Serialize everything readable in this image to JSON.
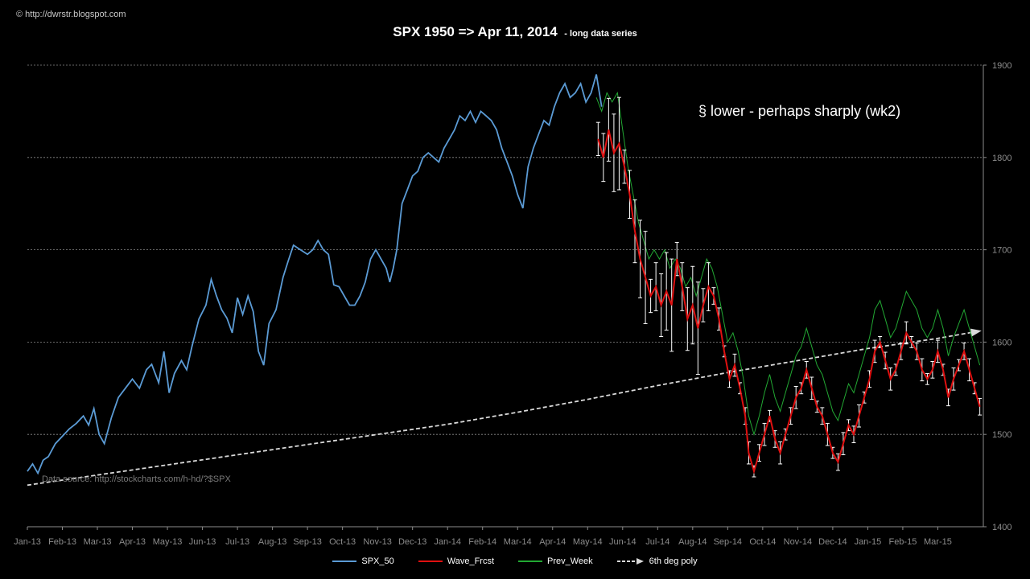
{
  "watermark": "© http://dwrstr.blogspot.com",
  "title_main": "SPX 1950 => Apr 11, 2014",
  "title_sub": "- long data series",
  "annotation": "§ lower - perhaps sharply (wk2)",
  "data_source": "Data source: http://stockcharts.com/h-hd/?$SPX",
  "colors": {
    "spx": "#5b9bd5",
    "wave": "#e01010",
    "prev": "#22a833",
    "poly": "#d9d9d9",
    "grid": "#8c8c8c",
    "axis_text": "#8c8c8c",
    "errbar": "#ffffff"
  },
  "chart_data": {
    "type": "line",
    "title": "SPX 1950 => Apr 11, 2014",
    "x_ticks": [
      "Jan-13",
      "Feb-13",
      "Mar-13",
      "Apr-13",
      "May-13",
      "Jun-13",
      "Jul-13",
      "Aug-13",
      "Sep-13",
      "Oct-13",
      "Nov-13",
      "Dec-13",
      "Jan-14",
      "Feb-14",
      "Mar-14",
      "Apr-14",
      "May-14",
      "Jun-14",
      "Jul-14",
      "Aug-14",
      "Sep-14",
      "Oct-14",
      "Nov-14",
      "Dec-14",
      "Jan-15",
      "Feb-15",
      "Mar-15"
    ],
    "xlim": [
      0,
      27.3
    ],
    "ylim": [
      1400,
      1900
    ],
    "y_ticks": [
      1400,
      1500,
      1600,
      1700,
      1800,
      1900
    ],
    "y_axis_side": "right",
    "grid": "horizontal dotted",
    "legend_position": "bottom",
    "series": [
      {
        "name": "SPX_50",
        "points": [
          [
            0.0,
            1460
          ],
          [
            0.15,
            1468
          ],
          [
            0.3,
            1458
          ],
          [
            0.45,
            1472
          ],
          [
            0.6,
            1476
          ],
          [
            0.8,
            1490
          ],
          [
            1.0,
            1498
          ],
          [
            1.2,
            1506
          ],
          [
            1.4,
            1512
          ],
          [
            1.6,
            1520
          ],
          [
            1.75,
            1510
          ],
          [
            1.9,
            1528
          ],
          [
            2.05,
            1500
          ],
          [
            2.2,
            1490
          ],
          [
            2.4,
            1518
          ],
          [
            2.6,
            1540
          ],
          [
            2.8,
            1550
          ],
          [
            3.0,
            1560
          ],
          [
            3.2,
            1550
          ],
          [
            3.4,
            1570
          ],
          [
            3.55,
            1576
          ],
          [
            3.75,
            1556
          ],
          [
            3.9,
            1590
          ],
          [
            4.05,
            1545
          ],
          [
            4.2,
            1566
          ],
          [
            4.4,
            1580
          ],
          [
            4.55,
            1570
          ],
          [
            4.7,
            1595
          ],
          [
            4.9,
            1625
          ],
          [
            5.1,
            1640
          ],
          [
            5.25,
            1668
          ],
          [
            5.4,
            1650
          ],
          [
            5.55,
            1635
          ],
          [
            5.7,
            1626
          ],
          [
            5.85,
            1610
          ],
          [
            6.0,
            1648
          ],
          [
            6.15,
            1630
          ],
          [
            6.3,
            1650
          ],
          [
            6.45,
            1633
          ],
          [
            6.6,
            1590
          ],
          [
            6.75,
            1575
          ],
          [
            6.9,
            1620
          ],
          [
            7.1,
            1635
          ],
          [
            7.3,
            1670
          ],
          [
            7.45,
            1688
          ],
          [
            7.6,
            1705
          ],
          [
            7.8,
            1700
          ],
          [
            8.0,
            1695
          ],
          [
            8.15,
            1700
          ],
          [
            8.3,
            1710
          ],
          [
            8.45,
            1700
          ],
          [
            8.6,
            1695
          ],
          [
            8.75,
            1662
          ],
          [
            8.9,
            1660
          ],
          [
            9.05,
            1650
          ],
          [
            9.2,
            1640
          ],
          [
            9.35,
            1640
          ],
          [
            9.5,
            1650
          ],
          [
            9.65,
            1665
          ],
          [
            9.8,
            1690
          ],
          [
            9.95,
            1700
          ],
          [
            10.1,
            1690
          ],
          [
            10.25,
            1680
          ],
          [
            10.35,
            1665
          ],
          [
            10.45,
            1680
          ],
          [
            10.55,
            1700
          ],
          [
            10.7,
            1750
          ],
          [
            10.85,
            1765
          ],
          [
            11.0,
            1780
          ],
          [
            11.15,
            1785
          ],
          [
            11.3,
            1800
          ],
          [
            11.45,
            1805
          ],
          [
            11.6,
            1800
          ],
          [
            11.75,
            1795
          ],
          [
            11.9,
            1810
          ],
          [
            12.05,
            1820
          ],
          [
            12.2,
            1830
          ],
          [
            12.35,
            1845
          ],
          [
            12.5,
            1840
          ],
          [
            12.65,
            1850
          ],
          [
            12.8,
            1838
          ],
          [
            12.95,
            1850
          ],
          [
            13.1,
            1845
          ],
          [
            13.25,
            1840
          ],
          [
            13.4,
            1830
          ],
          [
            13.55,
            1810
          ],
          [
            13.7,
            1795
          ],
          [
            13.85,
            1780
          ],
          [
            14.0,
            1760
          ],
          [
            14.15,
            1745
          ],
          [
            14.3,
            1790
          ],
          [
            14.45,
            1810
          ],
          [
            14.6,
            1825
          ],
          [
            14.75,
            1840
          ],
          [
            14.9,
            1835
          ],
          [
            15.05,
            1855
          ],
          [
            15.2,
            1870
          ],
          [
            15.35,
            1880
          ],
          [
            15.5,
            1865
          ],
          [
            15.65,
            1870
          ],
          [
            15.8,
            1880
          ],
          [
            15.95,
            1860
          ],
          [
            16.1,
            1870
          ],
          [
            16.25,
            1890
          ],
          [
            16.4,
            1855
          ]
        ]
      },
      {
        "name": "Wave_Frcst",
        "points": [
          [
            16.3,
            1820
          ],
          [
            16.45,
            1800
          ],
          [
            16.6,
            1830
          ],
          [
            16.75,
            1805
          ],
          [
            16.9,
            1815
          ],
          [
            17.05,
            1790
          ],
          [
            17.2,
            1760
          ],
          [
            17.35,
            1720
          ],
          [
            17.5,
            1690
          ],
          [
            17.65,
            1670
          ],
          [
            17.8,
            1650
          ],
          [
            17.95,
            1660
          ],
          [
            18.1,
            1640
          ],
          [
            18.25,
            1655
          ],
          [
            18.4,
            1640
          ],
          [
            18.55,
            1690
          ],
          [
            18.7,
            1660
          ],
          [
            18.85,
            1625
          ],
          [
            19.0,
            1640
          ],
          [
            19.15,
            1615
          ],
          [
            19.3,
            1640
          ],
          [
            19.45,
            1660
          ],
          [
            19.6,
            1650
          ],
          [
            19.75,
            1625
          ],
          [
            19.9,
            1590
          ],
          [
            20.05,
            1560
          ],
          [
            20.2,
            1575
          ],
          [
            20.35,
            1550
          ],
          [
            20.5,
            1520
          ],
          [
            20.6,
            1480
          ],
          [
            20.75,
            1460
          ],
          [
            20.9,
            1480
          ],
          [
            21.05,
            1500
          ],
          [
            21.2,
            1520
          ],
          [
            21.35,
            1495
          ],
          [
            21.5,
            1480
          ],
          [
            21.65,
            1500
          ],
          [
            21.8,
            1520
          ],
          [
            21.95,
            1540
          ],
          [
            22.1,
            1550
          ],
          [
            22.25,
            1570
          ],
          [
            22.4,
            1550
          ],
          [
            22.55,
            1530
          ],
          [
            22.7,
            1520
          ],
          [
            22.85,
            1500
          ],
          [
            23.0,
            1480
          ],
          [
            23.15,
            1470
          ],
          [
            23.3,
            1490
          ],
          [
            23.45,
            1510
          ],
          [
            23.6,
            1500
          ],
          [
            23.75,
            1520
          ],
          [
            23.9,
            1540
          ],
          [
            24.05,
            1560
          ],
          [
            24.2,
            1590
          ],
          [
            24.35,
            1600
          ],
          [
            24.5,
            1580
          ],
          [
            24.65,
            1560
          ],
          [
            24.8,
            1570
          ],
          [
            24.95,
            1590
          ],
          [
            25.1,
            1610
          ],
          [
            25.25,
            1600
          ],
          [
            25.4,
            1590
          ],
          [
            25.55,
            1570
          ],
          [
            25.7,
            1560
          ],
          [
            25.85,
            1570
          ],
          [
            26.0,
            1590
          ],
          [
            26.15,
            1570
          ],
          [
            26.3,
            1540
          ],
          [
            26.45,
            1560
          ],
          [
            26.6,
            1575
          ],
          [
            26.75,
            1590
          ],
          [
            26.9,
            1570
          ],
          [
            27.05,
            1550
          ],
          [
            27.2,
            1530
          ]
        ]
      },
      {
        "name": "Prev_Week",
        "points": [
          [
            16.25,
            1865
          ],
          [
            16.4,
            1850
          ],
          [
            16.55,
            1870
          ],
          [
            16.7,
            1860
          ],
          [
            16.85,
            1870
          ],
          [
            17.0,
            1830
          ],
          [
            17.15,
            1790
          ],
          [
            17.3,
            1760
          ],
          [
            17.45,
            1730
          ],
          [
            17.6,
            1710
          ],
          [
            17.75,
            1690
          ],
          [
            17.9,
            1700
          ],
          [
            18.05,
            1690
          ],
          [
            18.2,
            1700
          ],
          [
            18.35,
            1680
          ],
          [
            18.5,
            1690
          ],
          [
            18.65,
            1680
          ],
          [
            18.8,
            1660
          ],
          [
            18.95,
            1670
          ],
          [
            19.1,
            1650
          ],
          [
            19.25,
            1670
          ],
          [
            19.4,
            1690
          ],
          [
            19.55,
            1680
          ],
          [
            19.7,
            1660
          ],
          [
            19.85,
            1630
          ],
          [
            20.0,
            1600
          ],
          [
            20.15,
            1610
          ],
          [
            20.3,
            1590
          ],
          [
            20.45,
            1560
          ],
          [
            20.6,
            1520
          ],
          [
            20.75,
            1500
          ],
          [
            20.9,
            1520
          ],
          [
            21.05,
            1545
          ],
          [
            21.2,
            1565
          ],
          [
            21.35,
            1540
          ],
          [
            21.5,
            1525
          ],
          [
            21.65,
            1545
          ],
          [
            21.8,
            1565
          ],
          [
            21.95,
            1585
          ],
          [
            22.1,
            1595
          ],
          [
            22.25,
            1615
          ],
          [
            22.4,
            1595
          ],
          [
            22.55,
            1575
          ],
          [
            22.7,
            1565
          ],
          [
            22.85,
            1545
          ],
          [
            23.0,
            1525
          ],
          [
            23.15,
            1515
          ],
          [
            23.3,
            1535
          ],
          [
            23.45,
            1555
          ],
          [
            23.6,
            1545
          ],
          [
            23.75,
            1565
          ],
          [
            23.9,
            1585
          ],
          [
            24.05,
            1605
          ],
          [
            24.2,
            1635
          ],
          [
            24.35,
            1645
          ],
          [
            24.5,
            1625
          ],
          [
            24.65,
            1605
          ],
          [
            24.8,
            1615
          ],
          [
            24.95,
            1635
          ],
          [
            25.1,
            1655
          ],
          [
            25.25,
            1645
          ],
          [
            25.4,
            1635
          ],
          [
            25.55,
            1615
          ],
          [
            25.7,
            1605
          ],
          [
            25.85,
            1615
          ],
          [
            26.0,
            1635
          ],
          [
            26.15,
            1615
          ],
          [
            26.3,
            1585
          ],
          [
            26.45,
            1605
          ],
          [
            26.6,
            1620
          ],
          [
            26.75,
            1635
          ],
          [
            26.9,
            1615
          ],
          [
            27.05,
            1595
          ],
          [
            27.2,
            1575
          ]
        ]
      },
      {
        "name": "6th deg poly",
        "points": [
          [
            0.0,
            1445
          ],
          [
            2.0,
            1456
          ],
          [
            4.0,
            1467
          ],
          [
            6.0,
            1478
          ],
          [
            8.0,
            1489
          ],
          [
            10.0,
            1500
          ],
          [
            12.0,
            1511
          ],
          [
            14.0,
            1524
          ],
          [
            16.0,
            1538
          ],
          [
            18.0,
            1553
          ],
          [
            20.0,
            1567
          ],
          [
            22.0,
            1580
          ],
          [
            24.0,
            1593
          ],
          [
            26.0,
            1604
          ],
          [
            27.2,
            1612
          ]
        ]
      }
    ]
  }
}
